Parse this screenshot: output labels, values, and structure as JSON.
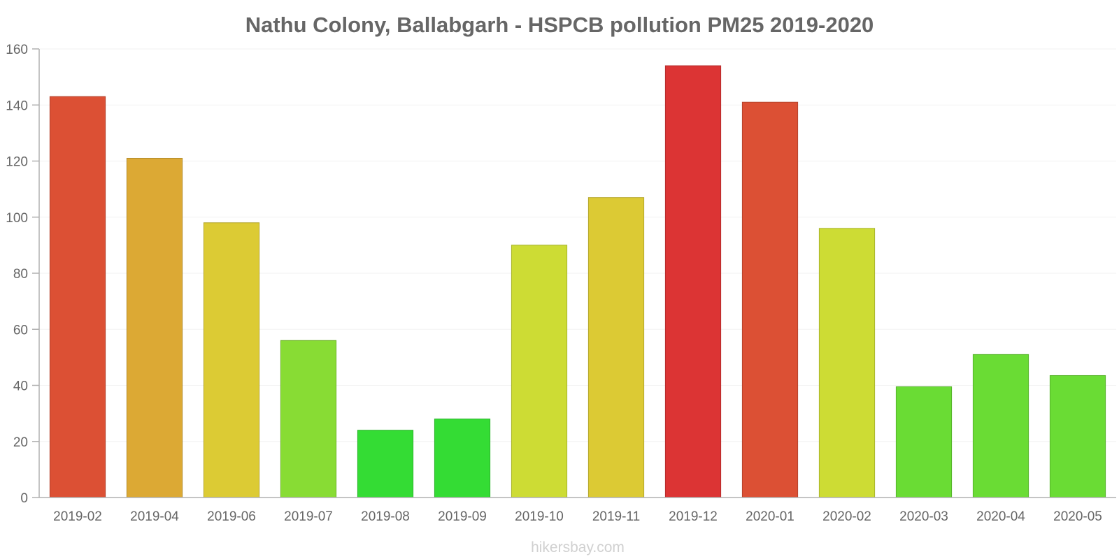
{
  "chart_data": {
    "type": "bar",
    "title": "Nathu Colony, Ballabgarh - HSPCB pollution PM25 2019-2020",
    "xlabel": "",
    "ylabel": "",
    "categories": [
      "2019-02",
      "2019-04",
      "2019-06",
      "2019-07",
      "2019-08",
      "2019-09",
      "2019-10",
      "2019-11",
      "2019-12",
      "2020-01",
      "2020-02",
      "2020-03",
      "2020-04",
      "2020-05"
    ],
    "values": [
      143,
      121,
      98,
      56,
      24,
      28,
      90,
      107,
      154,
      141,
      96,
      39.5,
      51,
      43.5
    ],
    "colors": [
      "#dc5034",
      "#dca934",
      "#dccb34",
      "#88dc34",
      "#34dc34",
      "#34dc34",
      "#cddc34",
      "#dcca34",
      "#dc3434",
      "#dc5034",
      "#cddc34",
      "#6adc34",
      "#6adc34",
      "#6adc34"
    ],
    "ylim": [
      0,
      160
    ],
    "yticks": [
      0,
      20,
      40,
      60,
      80,
      100,
      120,
      140,
      160
    ],
    "grid": true,
    "legend": "none"
  },
  "watermark": "hikersbay.com"
}
